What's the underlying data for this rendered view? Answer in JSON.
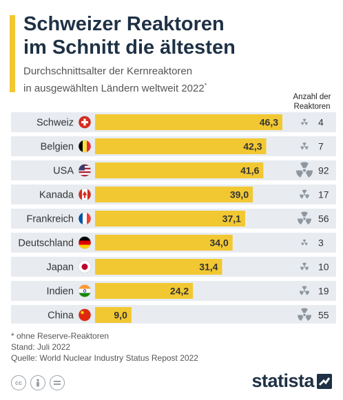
{
  "title_lines": [
    "Schweizer Reaktoren",
    "im Schnitt die ältesten"
  ],
  "subtitle_lines": [
    "Durchschnittsalter der Kernreaktoren",
    "in ausgewählten Ländern weltweit 2022"
  ],
  "subtitle_mark": "*",
  "count_header": [
    "Anzahl der",
    "Reaktoren"
  ],
  "chart_data": {
    "type": "bar",
    "orientation": "horizontal",
    "categories": [
      "Schweiz",
      "Belgien",
      "USA",
      "Kanada",
      "Frankreich",
      "Deutschland",
      "Japan",
      "Indien",
      "China"
    ],
    "value_labels": [
      "46,3",
      "42,3",
      "41,6",
      "39,0",
      "37,1",
      "34,0",
      "31,4",
      "24,2",
      "9,0"
    ],
    "series": [
      {
        "values": [
          46.3,
          42.3,
          41.6,
          39.0,
          37.1,
          34.0,
          31.4,
          24.2,
          9.0
        ]
      }
    ],
    "reactor_counts": [
      4,
      7,
      92,
      17,
      56,
      3,
      10,
      19,
      55
    ],
    "flags": [
      "flag-switzerland",
      "flag-belgium",
      "flag-usa",
      "flag-canada",
      "flag-france",
      "flag-germany",
      "flag-japan",
      "flag-india",
      "flag-china"
    ],
    "xlim": [
      0,
      46.3
    ],
    "grid": false,
    "legend": "none"
  },
  "footnotes": [
    "* ohne Reserve-Reaktoren",
    "Stand: Juli 2022",
    "Quelle: World Nuclear Industry Status Repost 2022"
  ],
  "brand": "statista",
  "license_icons": [
    "cc-icon",
    "person-icon",
    "equals-icon"
  ],
  "colors": {
    "accent": "#f2c832",
    "bar": "#f2c832",
    "row_bg": "#e8ecf1",
    "title": "#1f3145",
    "icon": "#8e979f"
  }
}
